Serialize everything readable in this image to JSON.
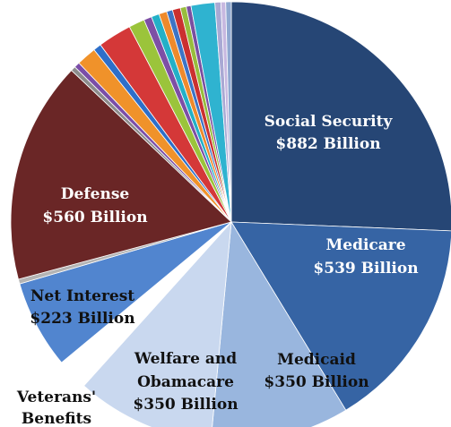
{
  "chart_data": {
    "type": "pie",
    "title": "",
    "legend": "none",
    "slices": [
      {
        "label": "Social Security",
        "value": 882,
        "value_label": "$882 Billion",
        "color": "#264675"
      },
      {
        "label": "Medicare",
        "value": 539,
        "value_label": "$539 Billion",
        "color": "#3664a4"
      },
      {
        "label": "Medicaid",
        "value": 350,
        "value_label": "$350 Billion",
        "color": "#99b6de"
      },
      {
        "label": "Welfare and Obamacare",
        "value": 350,
        "value_label": "$350 Billion",
        "color": "#c9d8ef"
      },
      {
        "label": "Veterans' Benefits",
        "value": 80,
        "value_label": "",
        "color": "#ffffff"
      },
      {
        "label": "Net Interest",
        "value": 223,
        "value_label": "$223 Billion",
        "color": "#5185cf"
      },
      {
        "label": "",
        "value": 12,
        "value_label": "",
        "color": "#b4b4b4"
      },
      {
        "label": "Defense",
        "value": 560,
        "value_label": "$560 Billion",
        "color": "#6a2626"
      },
      {
        "label": "",
        "value": 12,
        "value_label": "",
        "color": "#8c8c8c"
      },
      {
        "label": "",
        "value": 14,
        "value_label": "",
        "color": "#7a4ea8"
      },
      {
        "label": "",
        "value": 50,
        "value_label": "",
        "color": "#f0922a"
      },
      {
        "label": "",
        "value": 20,
        "value_label": "",
        "color": "#2e6fc9"
      },
      {
        "label": "",
        "value": 85,
        "value_label": "",
        "color": "#d43838"
      },
      {
        "label": "",
        "value": 40,
        "value_label": "",
        "color": "#9bc43b"
      },
      {
        "label": "",
        "value": 20,
        "value_label": "",
        "color": "#7d4fa5"
      },
      {
        "label": "",
        "value": 20,
        "value_label": "",
        "color": "#23b0c7"
      },
      {
        "label": "",
        "value": 20,
        "value_label": "",
        "color": "#ee8a2c"
      },
      {
        "label": "",
        "value": 15,
        "value_label": "",
        "color": "#3d74c5"
      },
      {
        "label": "",
        "value": 20,
        "value_label": "",
        "color": "#cb3030"
      },
      {
        "label": "",
        "value": 15,
        "value_label": "",
        "color": "#98bd3d"
      },
      {
        "label": "",
        "value": 12,
        "value_label": "",
        "color": "#7a4fa0"
      },
      {
        "label": "",
        "value": 60,
        "value_label": "",
        "color": "#2fb3d0"
      },
      {
        "label": "",
        "value": 15,
        "value_label": "",
        "color": "#a9a9d4"
      },
      {
        "label": "",
        "value": 12,
        "value_label": "",
        "color": "#c7b8e0"
      },
      {
        "label": "",
        "value": 14,
        "value_label": "",
        "color": "#8fa8d0"
      }
    ]
  }
}
